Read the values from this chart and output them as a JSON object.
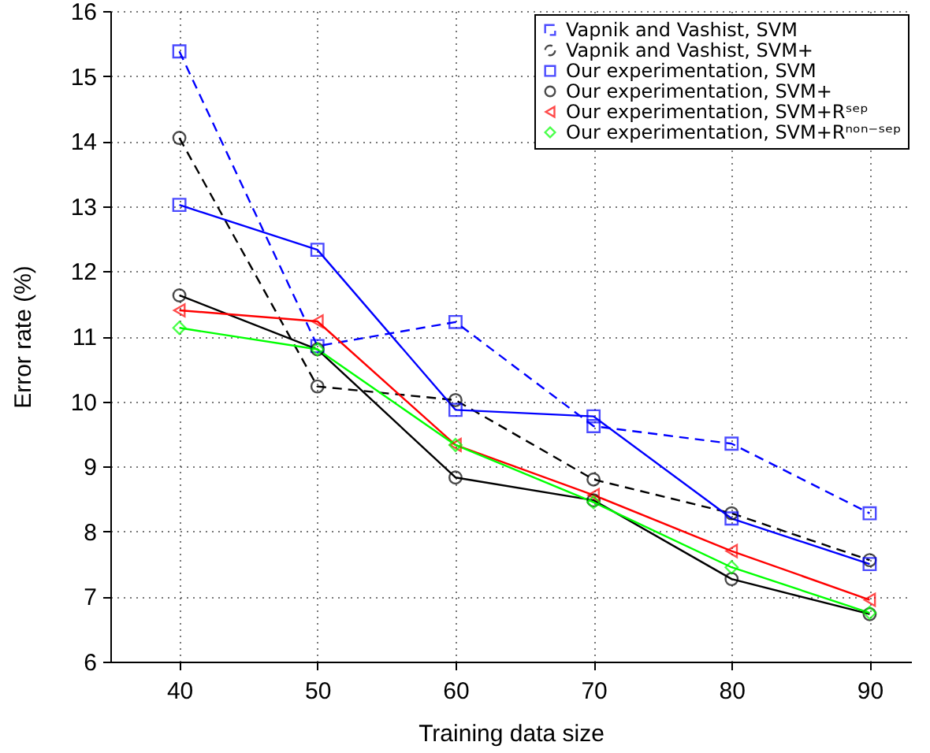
{
  "chart_data": {
    "type": "line",
    "xlabel": "Training data size",
    "ylabel": "Error rate (%)",
    "x": [
      40,
      50,
      60,
      70,
      80,
      90
    ],
    "xlim": [
      35,
      93
    ],
    "xticks": [
      40,
      50,
      60,
      70,
      80,
      90
    ],
    "ylim": [
      6,
      16
    ],
    "yticks": [
      6,
      7,
      8,
      9,
      10,
      11,
      12,
      13,
      14,
      15,
      16
    ],
    "grid": true,
    "legend": "top right",
    "series": [
      {
        "name": "Vapnik and Vashist, SVM",
        "color": "#0000ff",
        "marker": "square",
        "line_style": "dashed",
        "values": [
          15.38,
          10.85,
          11.22,
          9.62,
          9.35,
          8.28
        ]
      },
      {
        "name": "Vapnik and Vashist, SVM+",
        "color": "#000000",
        "marker": "circle",
        "line_style": "dashed",
        "values": [
          14.05,
          10.23,
          10.02,
          8.8,
          8.28,
          7.56
        ]
      },
      {
        "name": "Our experimentation, SVM",
        "color": "#0000ff",
        "marker": "square",
        "line_style": "solid",
        "values": [
          13.02,
          12.33,
          9.87,
          9.77,
          8.2,
          7.5
        ]
      },
      {
        "name": "Our experimentation, SVM+",
        "color": "#000000",
        "marker": "circle",
        "line_style": "solid",
        "values": [
          11.63,
          10.8,
          8.83,
          8.48,
          7.27,
          6.73
        ]
      },
      {
        "name": "Our experimentation, SVM+Rˢᵉᵖ",
        "color": "#ff0000",
        "marker": "triangle",
        "line_style": "solid",
        "values": [
          11.4,
          11.23,
          9.33,
          8.56,
          7.7,
          6.95
        ]
      },
      {
        "name": "Our experimentation, SVM+Rⁿᵒⁿ⁻ˢᵉᵖ",
        "color": "#00ff00",
        "marker": "diamond",
        "line_style": "solid",
        "values": [
          11.13,
          10.8,
          9.33,
          8.45,
          7.45,
          6.75
        ]
      }
    ]
  }
}
